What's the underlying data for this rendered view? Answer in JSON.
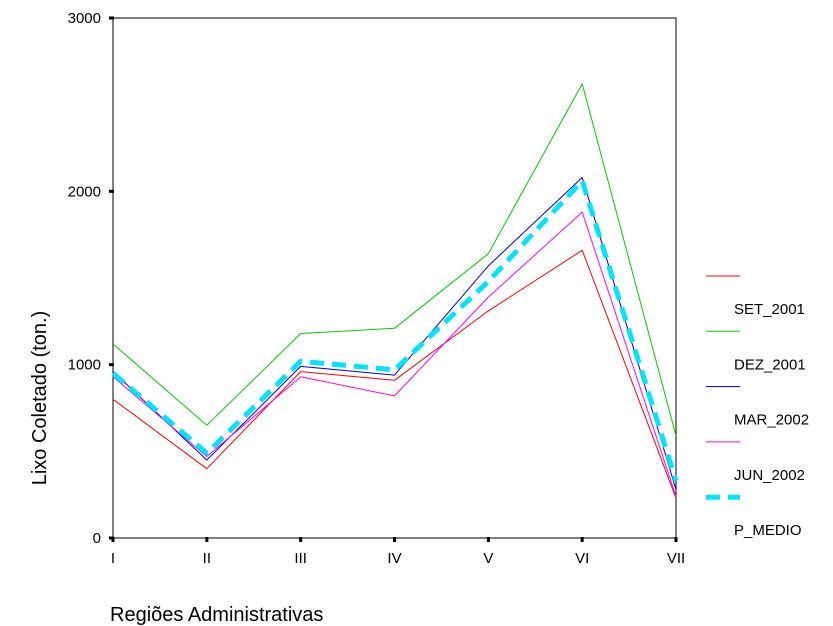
{
  "chart_data": {
    "type": "line",
    "title": "",
    "xlabel": "Regiões Administrativas",
    "ylabel": "Lixo Coletado (ton.)",
    "categories": [
      "I",
      "II",
      "III",
      "IV",
      "V",
      "VI",
      "VII"
    ],
    "ylim": [
      0,
      3000
    ],
    "yticks": [
      0,
      1000,
      2000,
      3000
    ],
    "grid": false,
    "legend_placement": "right",
    "series": [
      {
        "name": "SET_2001",
        "color": "#ff0000",
        "dashed": false,
        "values": [
          800,
          400,
          960,
          910,
          1310,
          1660,
          230
        ]
      },
      {
        "name": "DEZ_2001",
        "color": "#00cc00",
        "dashed": false,
        "values": [
          1120,
          650,
          1180,
          1210,
          1640,
          2620,
          590
        ]
      },
      {
        "name": "MAR_2002",
        "color": "#0000cc",
        "dashed": false,
        "values": [
          960,
          450,
          990,
          940,
          1570,
          2080,
          280
        ]
      },
      {
        "name": "JUN_2002",
        "color": "#ff00ff",
        "dashed": false,
        "values": [
          930,
          470,
          930,
          820,
          1390,
          1880,
          240
        ]
      },
      {
        "name": "P_MEDIO",
        "color": "#00e5ff",
        "dashed": true,
        "values": [
          950,
          490,
          1020,
          970,
          1480,
          2060,
          330
        ]
      }
    ]
  }
}
